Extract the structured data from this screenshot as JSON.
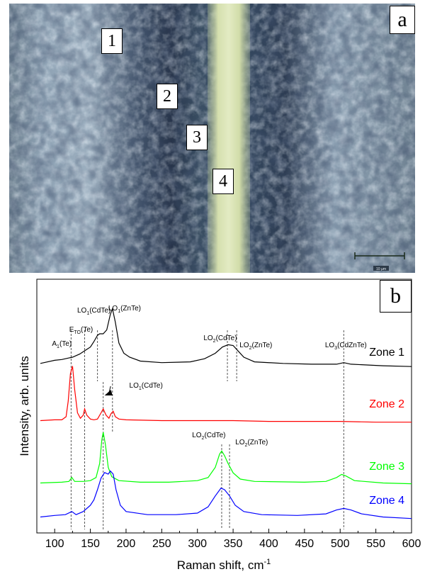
{
  "panel_a": {
    "label": "a",
    "zones": [
      "1",
      "2",
      "3",
      "4"
    ],
    "scale_bar_label": "10 µm"
  },
  "panel_b": {
    "label": "b"
  },
  "chart_data": {
    "type": "line",
    "xlabel": "Raman shift, cm",
    "xlabel_superscript": "-1",
    "ylabel": "Intensity, arb. units",
    "xlim": [
      75,
      600
    ],
    "xticks": [
      100,
      150,
      200,
      250,
      300,
      350,
      400,
      450,
      500,
      550,
      600
    ],
    "y_ticks_shown": false,
    "series": [
      {
        "name": "Zone 1",
        "color": "#000000",
        "points": [
          [
            80,
            0.12
          ],
          [
            100,
            0.16
          ],
          [
            110,
            0.17
          ],
          [
            120,
            0.19
          ],
          [
            125,
            0.2
          ],
          [
            135,
            0.24
          ],
          [
            145,
            0.3
          ],
          [
            150,
            0.33
          ],
          [
            155,
            0.4
          ],
          [
            160,
            0.48
          ],
          [
            163,
            0.5
          ],
          [
            168,
            0.5
          ],
          [
            173,
            0.55
          ],
          [
            178,
            0.75
          ],
          [
            181,
            0.82
          ],
          [
            185,
            0.65
          ],
          [
            190,
            0.38
          ],
          [
            197,
            0.25
          ],
          [
            205,
            0.2
          ],
          [
            220,
            0.15
          ],
          [
            250,
            0.13
          ],
          [
            290,
            0.14
          ],
          [
            310,
            0.18
          ],
          [
            325,
            0.25
          ],
          [
            335,
            0.33
          ],
          [
            343,
            0.36
          ],
          [
            350,
            0.35
          ],
          [
            357,
            0.28
          ],
          [
            365,
            0.2
          ],
          [
            380,
            0.14
          ],
          [
            420,
            0.12
          ],
          [
            460,
            0.11
          ],
          [
            495,
            0.11
          ],
          [
            505,
            0.13
          ],
          [
            515,
            0.11
          ],
          [
            560,
            0.09
          ],
          [
            600,
            0.08
          ]
        ]
      },
      {
        "name": "Zone 2",
        "color": "#ff0000",
        "points": [
          [
            80,
            0.05
          ],
          [
            100,
            0.06
          ],
          [
            110,
            0.06
          ],
          [
            116,
            0.1
          ],
          [
            119,
            0.3
          ],
          [
            122,
            0.65
          ],
          [
            125,
            0.75
          ],
          [
            128,
            0.45
          ],
          [
            132,
            0.15
          ],
          [
            136,
            0.08
          ],
          [
            140,
            0.12
          ],
          [
            142,
            0.2
          ],
          [
            145,
            0.12
          ],
          [
            150,
            0.07
          ],
          [
            155,
            0.06
          ],
          [
            160,
            0.07
          ],
          [
            165,
            0.15
          ],
          [
            168,
            0.2
          ],
          [
            172,
            0.12
          ],
          [
            176,
            0.08
          ],
          [
            179,
            0.14
          ],
          [
            182,
            0.17
          ],
          [
            185,
            0.1
          ],
          [
            190,
            0.07
          ],
          [
            200,
            0.06
          ],
          [
            250,
            0.05
          ],
          [
            300,
            0.05
          ],
          [
            350,
            0.05
          ],
          [
            400,
            0.04
          ],
          [
            450,
            0.04
          ],
          [
            500,
            0.04
          ],
          [
            550,
            0.03
          ],
          [
            600,
            0.03
          ]
        ]
      },
      {
        "name": "Zone 3",
        "color": "#00ff00",
        "points": [
          [
            80,
            0.05
          ],
          [
            110,
            0.06
          ],
          [
            120,
            0.07
          ],
          [
            124,
            0.12
          ],
          [
            128,
            0.07
          ],
          [
            140,
            0.07
          ],
          [
            150,
            0.08
          ],
          [
            158,
            0.12
          ],
          [
            163,
            0.3
          ],
          [
            166,
            0.6
          ],
          [
            168,
            0.7
          ],
          [
            171,
            0.55
          ],
          [
            175,
            0.25
          ],
          [
            180,
            0.13
          ],
          [
            190,
            0.08
          ],
          [
            220,
            0.06
          ],
          [
            260,
            0.06
          ],
          [
            300,
            0.08
          ],
          [
            315,
            0.12
          ],
          [
            325,
            0.25
          ],
          [
            331,
            0.42
          ],
          [
            334,
            0.46
          ],
          [
            338,
            0.4
          ],
          [
            343,
            0.3
          ],
          [
            350,
            0.18
          ],
          [
            360,
            0.1
          ],
          [
            380,
            0.07
          ],
          [
            450,
            0.06
          ],
          [
            480,
            0.07
          ],
          [
            495,
            0.12
          ],
          [
            502,
            0.16
          ],
          [
            508,
            0.14
          ],
          [
            520,
            0.08
          ],
          [
            560,
            0.05
          ],
          [
            600,
            0.04
          ]
        ]
      },
      {
        "name": "Zone 4",
        "color": "#0000ff",
        "points": [
          [
            80,
            0.05
          ],
          [
            100,
            0.07
          ],
          [
            115,
            0.08
          ],
          [
            124,
            0.12
          ],
          [
            130,
            0.08
          ],
          [
            140,
            0.12
          ],
          [
            150,
            0.2
          ],
          [
            155,
            0.27
          ],
          [
            160,
            0.4
          ],
          [
            165,
            0.55
          ],
          [
            170,
            0.62
          ],
          [
            175,
            0.6
          ],
          [
            178,
            0.64
          ],
          [
            182,
            0.6
          ],
          [
            186,
            0.4
          ],
          [
            192,
            0.2
          ],
          [
            200,
            0.12
          ],
          [
            230,
            0.08
          ],
          [
            270,
            0.08
          ],
          [
            300,
            0.1
          ],
          [
            315,
            0.18
          ],
          [
            325,
            0.32
          ],
          [
            333,
            0.42
          ],
          [
            338,
            0.4
          ],
          [
            345,
            0.32
          ],
          [
            353,
            0.2
          ],
          [
            365,
            0.12
          ],
          [
            390,
            0.08
          ],
          [
            440,
            0.07
          ],
          [
            480,
            0.09
          ],
          [
            495,
            0.14
          ],
          [
            505,
            0.16
          ],
          [
            515,
            0.14
          ],
          [
            530,
            0.09
          ],
          [
            560,
            0.05
          ],
          [
            600,
            0.03
          ]
        ]
      }
    ],
    "reference_lines": [
      {
        "x": 123,
        "zone_extent": [
          1,
          4
        ]
      },
      {
        "x": 142,
        "zone_extent": [
          1,
          4
        ]
      },
      {
        "x": 160,
        "zone_extent": [
          1,
          1
        ]
      },
      {
        "x": 168,
        "zone_extent": [
          2,
          4
        ]
      },
      {
        "x": 181,
        "zone_extent": [
          1,
          2
        ]
      },
      {
        "x": 342,
        "zone_extent": [
          1,
          1
        ]
      },
      {
        "x": 355,
        "zone_extent": [
          1,
          1
        ]
      },
      {
        "x": 334,
        "zone_extent": [
          3,
          4
        ]
      },
      {
        "x": 345,
        "zone_extent": [
          3,
          4
        ]
      },
      {
        "x": 505,
        "zone_extent": [
          1,
          4
        ]
      }
    ],
    "annotations": [
      {
        "main": "A",
        "sub": "1",
        "tail": "(Te)",
        "x": 110,
        "zone": 1,
        "dy": -38
      },
      {
        "main": "E",
        "sub": "TO",
        "tail": "(Te)",
        "x": 137,
        "zone": 1,
        "dy": -58
      },
      {
        "main": "LO",
        "sub": "1",
        "tail": "(CdTe)",
        "x": 155,
        "zone": 1,
        "dy": -85
      },
      {
        "main": "LO",
        "sub": "1",
        "tail": "(ZnTe)",
        "x": 198,
        "zone": 1,
        "dy": -88
      },
      {
        "main": "LO",
        "sub": "2",
        "tail": "(CdTe)",
        "x": 332,
        "zone": 1,
        "dy": -46
      },
      {
        "main": "LO",
        "sub": "2",
        "tail": "(ZnTe)",
        "x": 382,
        "zone": 1,
        "dy": -36
      },
      {
        "main": "LO",
        "sub": "3",
        "tail": "(CdZnTe)",
        "x": 508,
        "zone": 1,
        "dy": -36
      },
      {
        "main": "LO",
        "sub": "1",
        "tail": "(CdTe)",
        "x": 228,
        "zone": 2,
        "dy": -52,
        "arrow_to_x": 170
      },
      {
        "main": "LO",
        "sub": "2",
        "tail": "(CdTe)",
        "x": 316,
        "zone": 3,
        "dy": -70
      },
      {
        "main": "LO",
        "sub": "2",
        "tail": "(ZnTe)",
        "x": 376,
        "zone": 3,
        "dy": -60
      }
    ]
  }
}
